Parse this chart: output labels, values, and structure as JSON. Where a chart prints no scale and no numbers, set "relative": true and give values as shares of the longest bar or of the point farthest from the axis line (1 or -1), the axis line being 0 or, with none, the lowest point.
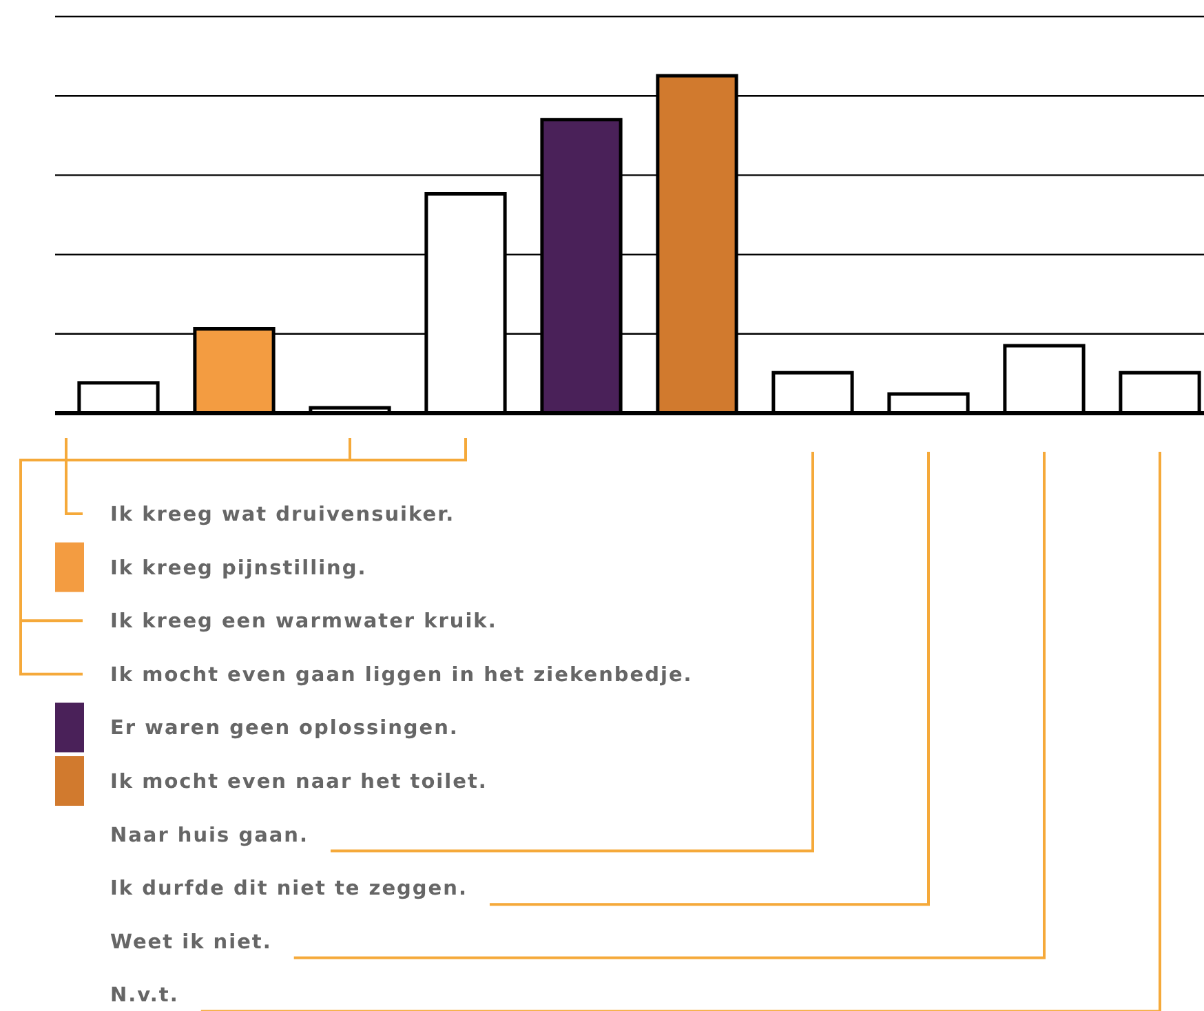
{
  "chart_data": {
    "type": "bar",
    "relative": true,
    "grid": true,
    "categories": [
      null,
      null,
      null,
      null,
      null,
      null,
      null,
      null,
      null,
      null
    ],
    "values": [
      0.09,
      0.25,
      0.016,
      0.65,
      0.87,
      1,
      0.12,
      0.057,
      0.2,
      0.12
    ],
    "colors": [
      "#ffffff",
      "#f39c41",
      "#ffffff",
      "#ffffff",
      "#4a2159",
      "#d17a2e",
      "#ffffff",
      "#ffffff",
      "#ffffff",
      "#ffffff"
    ],
    "annotations": [
      "Ik kreeg wat druivensuiker.",
      "Ik kreeg pijnstilling.",
      "Ik kreeg een warmwater kruik.",
      "Ik mocht even gaan liggen in het ziekenbedje.",
      "Er waren geen oplossingen.",
      "Ik mocht even naar het toilet.",
      "Naar huis gaan.",
      "Ik durfde dit niet te zeggen.",
      "Weet ik niet.",
      "N.v.t."
    ]
  }
}
